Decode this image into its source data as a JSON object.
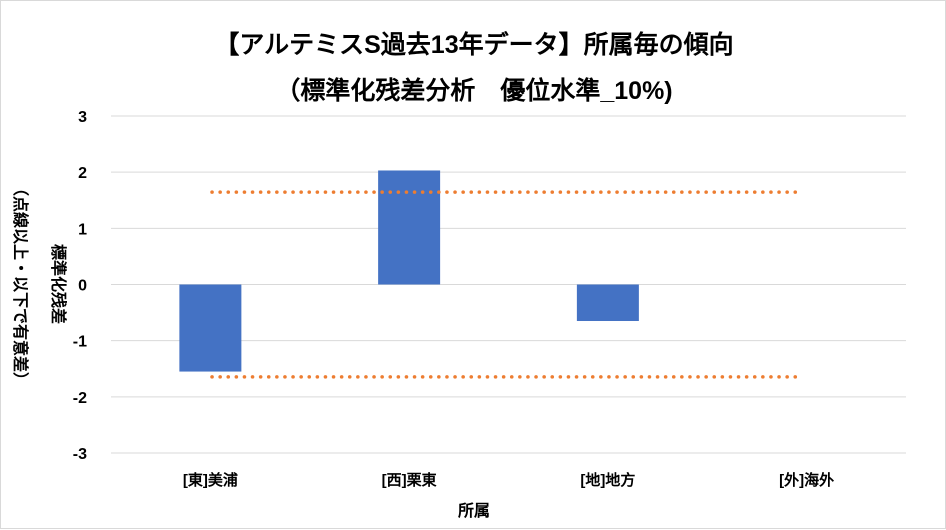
{
  "chart_data": {
    "type": "bar",
    "title": "【アルテミスS過去13年データ】所属毎の傾向",
    "subtitle": "（標準化残差分析　優位水準_10%)",
    "xlabel": "所属",
    "ylabel": "標準化残差",
    "ylabel2": "（点線以上・以下で有意差）",
    "categories": [
      "[東]美浦",
      "[西]栗東",
      "[地]地方",
      "[外]海外"
    ],
    "values": [
      -1.55,
      2.03,
      -0.65,
      0
    ],
    "ylim": [
      -3,
      3
    ],
    "yticks": [
      "3",
      "2",
      "1",
      "0",
      "-1",
      "-2",
      "-3"
    ],
    "threshold_lines": [
      1.645,
      -1.645
    ],
    "grid": true,
    "colors": {
      "bar": "#4472C4",
      "threshold": "#ED7D31",
      "grid": "#d9d9d9"
    }
  }
}
